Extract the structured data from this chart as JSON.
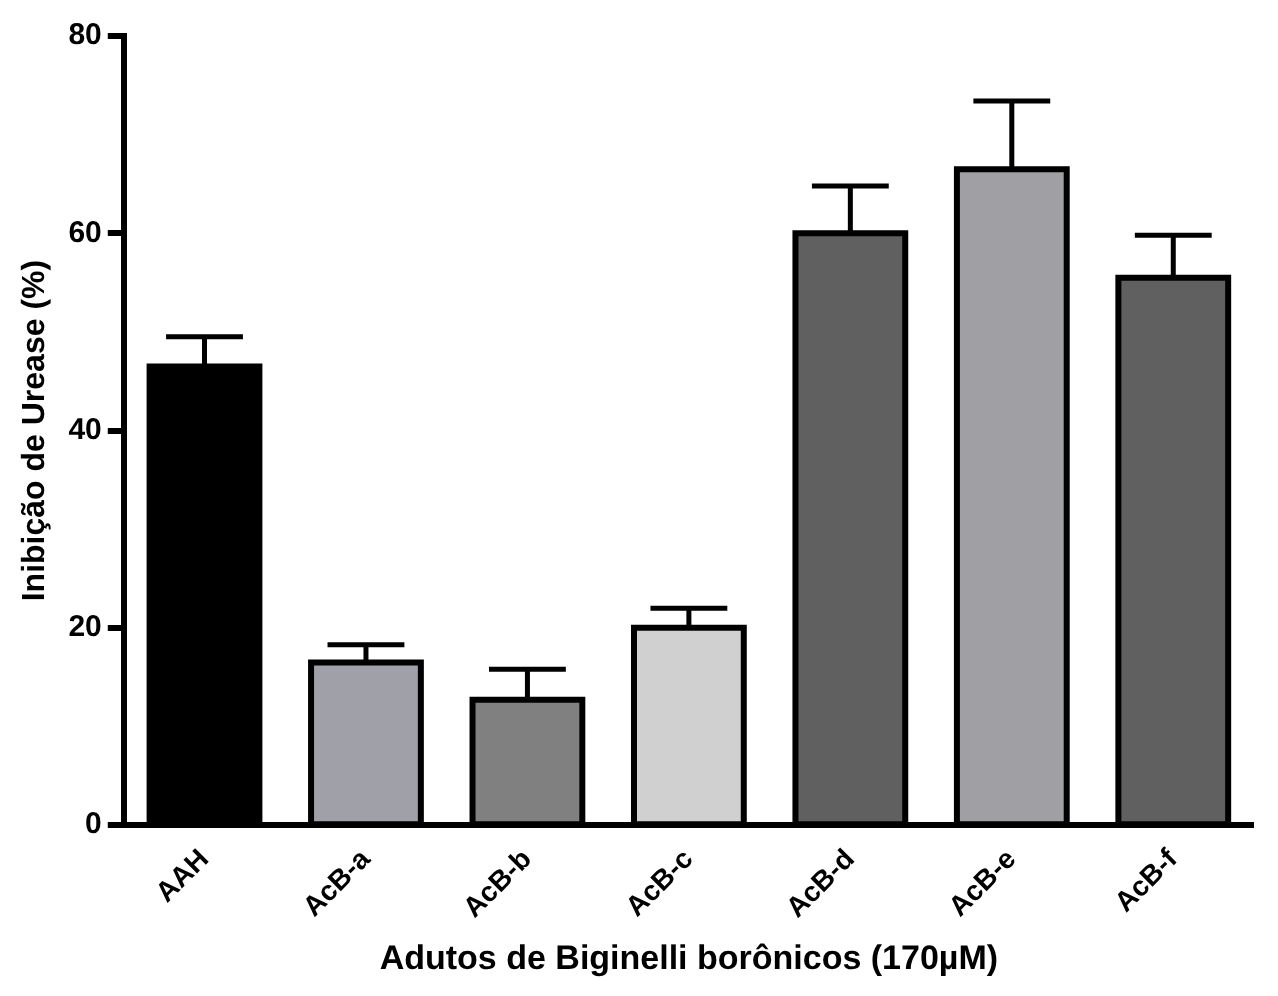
{
  "chart_data": {
    "type": "bar",
    "xlabel": "Adutos de Biginelli borônicos (170µM)",
    "ylabel": "Inibição de Urease (%)",
    "categories": [
      "AAH",
      "AcB-a",
      "AcB-b",
      "AcB-c",
      "AcB-d",
      "AcB-e",
      "AcB-f"
    ],
    "values": [
      46.5,
      16.5,
      12.7,
      20,
      60,
      66.5,
      55.5
    ],
    "errors": [
      [
        46.5,
        49.5
      ],
      [
        16.5,
        18.3
      ],
      [
        12.7,
        15.8
      ],
      [
        20,
        22
      ],
      [
        60,
        64.8
      ],
      [
        66.5,
        73.4
      ],
      [
        55.5,
        59.8
      ]
    ],
    "colors": [
      "#000000",
      "#a0a0a8",
      "#808080",
      "#d0d0d0",
      "#606060",
      "#a0a0a4",
      "#606060"
    ],
    "ylim": [
      0,
      80
    ],
    "yticks": [
      0,
      20,
      40,
      60,
      80
    ],
    "grid": false,
    "legend": false
  }
}
